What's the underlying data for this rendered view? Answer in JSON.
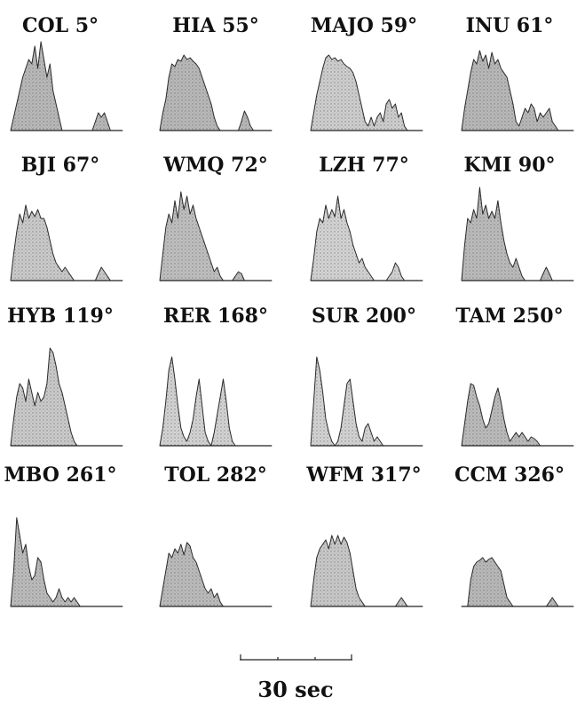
{
  "chart_data": {
    "type": "area",
    "panels": [
      {
        "label": "COL 5°",
        "darkness": 0.55,
        "values": [
          0,
          0.15,
          0.3,
          0.45,
          0.6,
          0.7,
          0.8,
          0.75,
          0.95,
          0.7,
          1.0,
          0.8,
          0.6,
          0.75,
          0.45,
          0.3,
          0.15,
          0,
          0,
          0,
          0,
          0,
          0,
          0,
          0,
          0,
          0,
          0,
          0.1,
          0.2,
          0.15,
          0.2,
          0.1,
          0,
          0,
          0,
          0,
          0
        ]
      },
      {
        "label": "HIA 55°",
        "darkness": 0.55,
        "values": [
          0,
          0.2,
          0.35,
          0.6,
          0.75,
          0.72,
          0.8,
          0.78,
          0.85,
          0.8,
          0.82,
          0.78,
          0.75,
          0.7,
          0.6,
          0.5,
          0.4,
          0.3,
          0.15,
          0.05,
          0,
          0,
          0,
          0,
          0,
          0,
          0,
          0.1,
          0.22,
          0.15,
          0.05,
          0,
          0,
          0,
          0,
          0,
          0,
          0
        ]
      },
      {
        "label": "MAJO 59°",
        "darkness": 0.25,
        "values": [
          0,
          0.2,
          0.4,
          0.55,
          0.7,
          0.82,
          0.85,
          0.8,
          0.82,
          0.78,
          0.8,
          0.75,
          0.72,
          0.7,
          0.65,
          0.55,
          0.4,
          0.25,
          0.1,
          0.05,
          0.15,
          0.05,
          0.15,
          0.2,
          0.1,
          0.3,
          0.35,
          0.25,
          0.3,
          0.15,
          0.2,
          0.05,
          0,
          0,
          0,
          0,
          0,
          0
        ]
      },
      {
        "label": "INU 61°",
        "darkness": 0.55,
        "values": [
          0,
          0.25,
          0.45,
          0.65,
          0.8,
          0.75,
          0.9,
          0.78,
          0.85,
          0.7,
          0.88,
          0.75,
          0.8,
          0.7,
          0.65,
          0.6,
          0.45,
          0.3,
          0.1,
          0.05,
          0.15,
          0.25,
          0.2,
          0.3,
          0.25,
          0.1,
          0.2,
          0.15,
          0.2,
          0.25,
          0.1,
          0.05,
          0,
          0,
          0,
          0,
          0,
          0
        ]
      },
      {
        "label": "BJI 67°",
        "darkness": 0.3,
        "values": [
          0,
          0.3,
          0.55,
          0.75,
          0.65,
          0.85,
          0.7,
          0.78,
          0.72,
          0.8,
          0.7,
          0.7,
          0.6,
          0.45,
          0.3,
          0.2,
          0.15,
          0.1,
          0.15,
          0.1,
          0.05,
          0,
          0,
          0,
          0,
          0,
          0,
          0,
          0,
          0.08,
          0.15,
          0.1,
          0.05,
          0,
          0,
          0,
          0,
          0
        ]
      },
      {
        "label": "WMQ 72°",
        "darkness": 0.45,
        "values": [
          0,
          0.3,
          0.6,
          0.75,
          0.65,
          0.9,
          0.7,
          1.0,
          0.8,
          0.95,
          0.75,
          0.85,
          0.7,
          0.6,
          0.5,
          0.4,
          0.3,
          0.2,
          0.1,
          0.15,
          0.05,
          0,
          0,
          0,
          0,
          0.05,
          0.1,
          0.08,
          0,
          0,
          0,
          0,
          0,
          0,
          0,
          0,
          0,
          0
        ]
      },
      {
        "label": "LZH 77°",
        "darkness": 0.2,
        "values": [
          0,
          0.25,
          0.55,
          0.7,
          0.65,
          0.85,
          0.7,
          0.8,
          0.72,
          0.95,
          0.7,
          0.8,
          0.65,
          0.55,
          0.4,
          0.3,
          0.2,
          0.25,
          0.15,
          0.1,
          0.05,
          0,
          0,
          0,
          0,
          0,
          0.05,
          0.1,
          0.2,
          0.15,
          0.05,
          0,
          0,
          0,
          0,
          0,
          0,
          0
        ]
      },
      {
        "label": "KMI 90°",
        "darkness": 0.5,
        "values": [
          0,
          0.4,
          0.7,
          0.65,
          0.8,
          0.7,
          1.05,
          0.75,
          0.85,
          0.7,
          0.78,
          0.7,
          0.9,
          0.65,
          0.45,
          0.3,
          0.2,
          0.15,
          0.25,
          0.15,
          0.05,
          0,
          0,
          0,
          0,
          0,
          0,
          0.08,
          0.15,
          0.08,
          0,
          0,
          0,
          0,
          0,
          0,
          0,
          0
        ]
      },
      {
        "label": "HYB 119°",
        "darkness": 0.3,
        "values": [
          0,
          0.3,
          0.55,
          0.7,
          0.65,
          0.5,
          0.75,
          0.6,
          0.45,
          0.6,
          0.5,
          0.55,
          0.7,
          1.1,
          1.05,
          0.9,
          0.7,
          0.6,
          0.45,
          0.3,
          0.15,
          0.05,
          0,
          0,
          0,
          0,
          0,
          0,
          0,
          0,
          0,
          0,
          0,
          0,
          0,
          0,
          0,
          0
        ]
      },
      {
        "label": "RER 168°",
        "darkness": 0.2,
        "values": [
          0,
          0.2,
          0.5,
          0.85,
          1.0,
          0.75,
          0.45,
          0.2,
          0.1,
          0.05,
          0.15,
          0.3,
          0.55,
          0.75,
          0.45,
          0.15,
          0.05,
          0,
          0.15,
          0.35,
          0.55,
          0.75,
          0.5,
          0.2,
          0.05,
          0,
          0,
          0,
          0,
          0,
          0,
          0,
          0,
          0,
          0,
          0,
          0,
          0
        ]
      },
      {
        "label": "SUR 200°",
        "darkness": 0.2,
        "values": [
          0,
          0.5,
          1.0,
          0.85,
          0.6,
          0.3,
          0.15,
          0.05,
          0,
          0.05,
          0.2,
          0.45,
          0.7,
          0.75,
          0.5,
          0.25,
          0.1,
          0.05,
          0.2,
          0.25,
          0.15,
          0.05,
          0.1,
          0.05,
          0,
          0,
          0,
          0,
          0,
          0,
          0,
          0,
          0,
          0,
          0,
          0,
          0,
          0
        ]
      },
      {
        "label": "TAM 250°",
        "darkness": 0.5,
        "values": [
          0,
          0.25,
          0.5,
          0.7,
          0.68,
          0.55,
          0.45,
          0.3,
          0.2,
          0.25,
          0.4,
          0.55,
          0.65,
          0.5,
          0.3,
          0.15,
          0.05,
          0.1,
          0.15,
          0.1,
          0.15,
          0.1,
          0.05,
          0.1,
          0.08,
          0.05,
          0,
          0,
          0,
          0,
          0,
          0,
          0,
          0,
          0,
          0,
          0,
          0
        ]
      },
      {
        "label": "MBO 261°",
        "darkness": 0.5,
        "values": [
          0,
          0.4,
          1.0,
          0.8,
          0.6,
          0.7,
          0.45,
          0.3,
          0.35,
          0.55,
          0.5,
          0.3,
          0.15,
          0.1,
          0.05,
          0.1,
          0.2,
          0.1,
          0.05,
          0.1,
          0.05,
          0.1,
          0.05,
          0,
          0,
          0,
          0,
          0,
          0,
          0,
          0,
          0,
          0,
          0,
          0,
          0,
          0,
          0
        ]
      },
      {
        "label": "TOL 282°",
        "darkness": 0.5,
        "values": [
          0,
          0.2,
          0.4,
          0.6,
          0.55,
          0.65,
          0.6,
          0.7,
          0.58,
          0.72,
          0.68,
          0.55,
          0.5,
          0.4,
          0.3,
          0.2,
          0.15,
          0.2,
          0.1,
          0.15,
          0.05,
          0,
          0,
          0,
          0,
          0,
          0,
          0,
          0,
          0,
          0,
          0,
          0,
          0,
          0,
          0,
          0,
          0
        ]
      },
      {
        "label": "WFM 317°",
        "darkness": 0.35,
        "values": [
          0,
          0.3,
          0.55,
          0.65,
          0.7,
          0.75,
          0.65,
          0.8,
          0.7,
          0.8,
          0.7,
          0.78,
          0.72,
          0.6,
          0.4,
          0.2,
          0.1,
          0.05,
          0,
          0,
          0,
          0,
          0,
          0,
          0,
          0,
          0,
          0,
          0,
          0.05,
          0.1,
          0.05,
          0,
          0,
          0,
          0,
          0,
          0
        ]
      },
      {
        "label": "CCM 326°",
        "darkness": 0.55,
        "values": [
          0,
          0,
          0,
          0.3,
          0.45,
          0.5,
          0.52,
          0.55,
          0.5,
          0.53,
          0.55,
          0.5,
          0.45,
          0.4,
          0.25,
          0.1,
          0.05,
          0,
          0,
          0,
          0,
          0,
          0,
          0,
          0,
          0,
          0,
          0,
          0,
          0.05,
          0.1,
          0.05,
          0,
          0,
          0,
          0,
          0,
          0
        ]
      }
    ],
    "scale_bar": {
      "label": "30 sec",
      "seconds": 30
    }
  }
}
